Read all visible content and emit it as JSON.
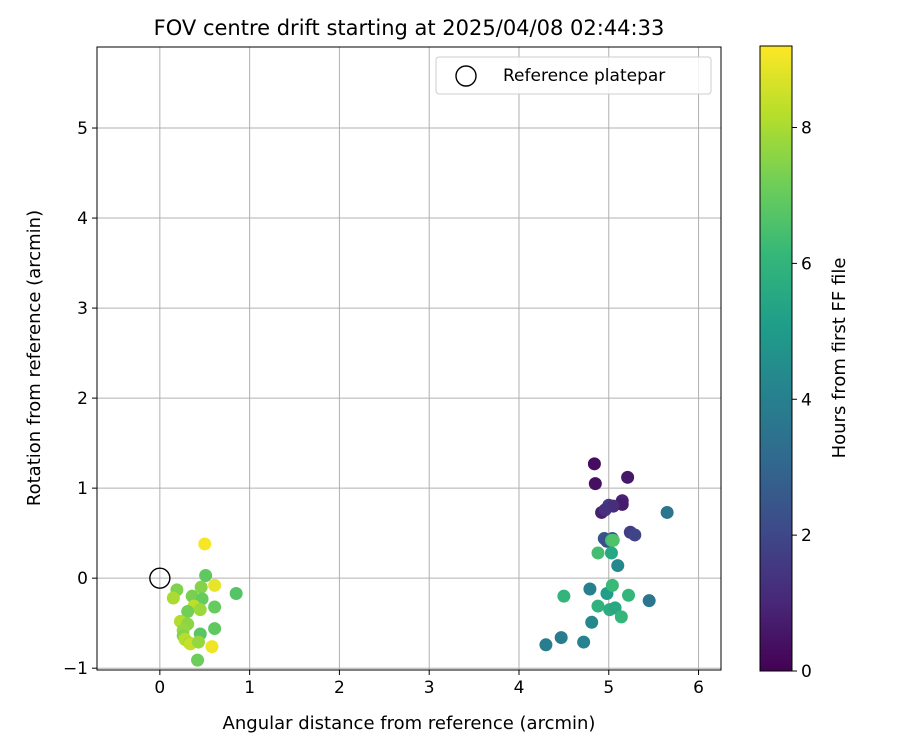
{
  "chart_data": {
    "type": "scatter",
    "title": "FOV centre drift starting at 2025/04/08 02:44:33",
    "xlabel": "Angular distance from reference (arcmin)",
    "ylabel": "Rotation from reference (arcmin)",
    "xlim": [
      -0.7,
      6.25
    ],
    "ylim": [
      -1.02,
      5.9
    ],
    "xticks": [
      0,
      1,
      2,
      3,
      4,
      5,
      6
    ],
    "yticks": [
      -1,
      0,
      1,
      2,
      3,
      4,
      5
    ],
    "grid": true,
    "legend": {
      "placement": "top-right",
      "entries": [
        "Reference platepar"
      ]
    },
    "reference_point": {
      "x": 0,
      "y": 0,
      "label": "Reference platepar"
    },
    "colorbar": {
      "label": "Hours from first FF file",
      "colormap": "viridis",
      "range": [
        0,
        9.2
      ],
      "ticks": [
        0,
        2,
        4,
        6,
        8
      ]
    },
    "points": [
      {
        "x": 4.84,
        "y": 1.27,
        "h": 0.3
      },
      {
        "x": 5.21,
        "y": 1.12,
        "h": 0.6
      },
      {
        "x": 4.85,
        "y": 1.05,
        "h": 0.4
      },
      {
        "x": 5.15,
        "y": 0.86,
        "h": 0.9
      },
      {
        "x": 5.15,
        "y": 0.82,
        "h": 0.7
      },
      {
        "x": 5.0,
        "y": 0.81,
        "h": 1.6
      },
      {
        "x": 5.05,
        "y": 0.8,
        "h": 1.2
      },
      {
        "x": 4.92,
        "y": 0.73,
        "h": 0.8
      },
      {
        "x": 4.96,
        "y": 0.76,
        "h": 1.3
      },
      {
        "x": 5.24,
        "y": 0.51,
        "h": 1.7
      },
      {
        "x": 5.29,
        "y": 0.48,
        "h": 1.9
      },
      {
        "x": 4.95,
        "y": 0.44,
        "h": 2.4
      },
      {
        "x": 5.04,
        "y": 0.44,
        "h": 2.6
      },
      {
        "x": 4.98,
        "y": 0.41,
        "h": 2.2
      },
      {
        "x": 5.65,
        "y": 0.73,
        "h": 3.6
      },
      {
        "x": 5.03,
        "y": 0.42,
        "h": 6.3
      },
      {
        "x": 5.05,
        "y": 0.42,
        "h": 6.6
      },
      {
        "x": 4.88,
        "y": 0.28,
        "h": 6.4
      },
      {
        "x": 5.03,
        "y": 0.28,
        "h": 5.5
      },
      {
        "x": 5.1,
        "y": 0.14,
        "h": 4.3
      },
      {
        "x": 4.79,
        "y": -0.12,
        "h": 4.0
      },
      {
        "x": 4.98,
        "y": -0.17,
        "h": 5.1
      },
      {
        "x": 5.04,
        "y": -0.08,
        "h": 6.2
      },
      {
        "x": 4.5,
        "y": -0.2,
        "h": 6.0
      },
      {
        "x": 5.22,
        "y": -0.19,
        "h": 6.1
      },
      {
        "x": 5.45,
        "y": -0.25,
        "h": 3.6
      },
      {
        "x": 4.88,
        "y": -0.31,
        "h": 5.9
      },
      {
        "x": 5.01,
        "y": -0.35,
        "h": 5.7
      },
      {
        "x": 5.07,
        "y": -0.33,
        "h": 5.5
      },
      {
        "x": 5.14,
        "y": -0.43,
        "h": 6.1
      },
      {
        "x": 4.81,
        "y": -0.49,
        "h": 4.3
      },
      {
        "x": 4.47,
        "y": -0.66,
        "h": 3.8
      },
      {
        "x": 4.3,
        "y": -0.74,
        "h": 3.9
      },
      {
        "x": 4.72,
        "y": -0.71,
        "h": 4.1
      },
      {
        "x": 0.5,
        "y": 0.38,
        "h": 9.1
      },
      {
        "x": 0.51,
        "y": 0.03,
        "h": 6.9
      },
      {
        "x": 0.61,
        "y": -0.08,
        "h": 8.9
      },
      {
        "x": 0.46,
        "y": -0.1,
        "h": 7.5
      },
      {
        "x": 0.19,
        "y": -0.13,
        "h": 7.4
      },
      {
        "x": 0.85,
        "y": -0.17,
        "h": 6.7
      },
      {
        "x": 0.36,
        "y": -0.2,
        "h": 7.3
      },
      {
        "x": 0.15,
        "y": -0.22,
        "h": 8.0
      },
      {
        "x": 0.47,
        "y": -0.23,
        "h": 7.0
      },
      {
        "x": 0.38,
        "y": -0.31,
        "h": 8.3
      },
      {
        "x": 0.45,
        "y": -0.35,
        "h": 7.8
      },
      {
        "x": 0.61,
        "y": -0.32,
        "h": 7.0
      },
      {
        "x": 0.31,
        "y": -0.37,
        "h": 7.2
      },
      {
        "x": 0.23,
        "y": -0.48,
        "h": 8.1
      },
      {
        "x": 0.31,
        "y": -0.51,
        "h": 7.6
      },
      {
        "x": 0.26,
        "y": -0.58,
        "h": 7.7
      },
      {
        "x": 0.45,
        "y": -0.62,
        "h": 6.8
      },
      {
        "x": 0.61,
        "y": -0.56,
        "h": 6.9
      },
      {
        "x": 0.26,
        "y": -0.64,
        "h": 7.5
      },
      {
        "x": 0.28,
        "y": -0.68,
        "h": 8.2
      },
      {
        "x": 0.33,
        "y": -0.72,
        "h": 7.9
      },
      {
        "x": 0.34,
        "y": -0.73,
        "h": 8.4
      },
      {
        "x": 0.43,
        "y": -0.71,
        "h": 7.7
      },
      {
        "x": 0.58,
        "y": -0.76,
        "h": 9.0
      },
      {
        "x": 0.42,
        "y": -0.91,
        "h": 7.1
      }
    ]
  }
}
